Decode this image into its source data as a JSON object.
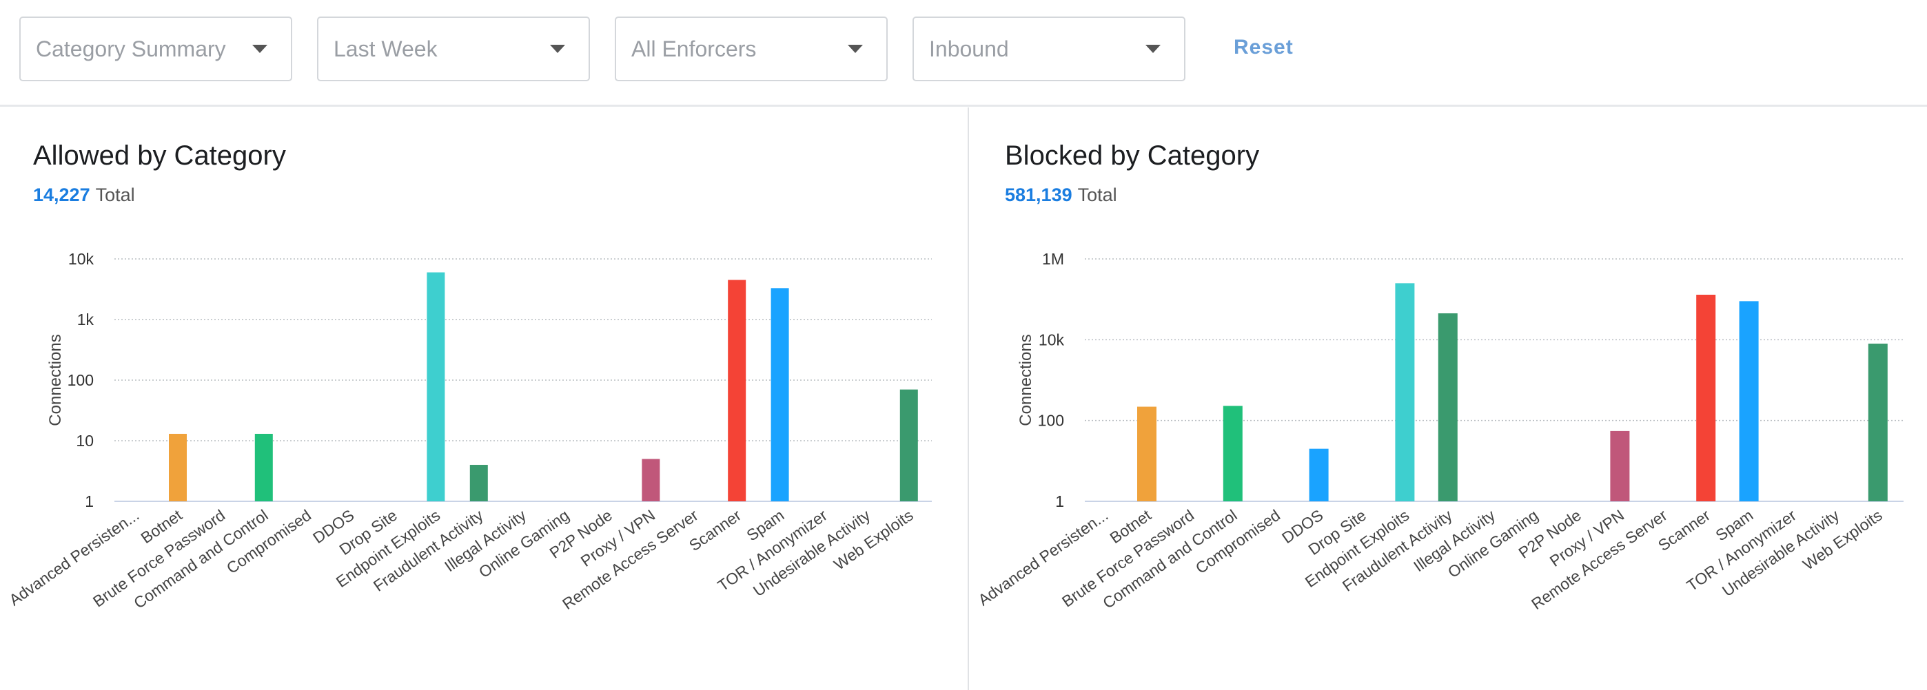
{
  "filters": {
    "view": "Category Summary",
    "period": "Last Week",
    "enforcer": "All Enforcers",
    "direction": "Inbound",
    "reset_label": "Reset"
  },
  "panels": [
    {
      "title": "Allowed by Category",
      "total": "14,227",
      "total_label": "Total"
    },
    {
      "title": "Blocked by Category",
      "total": "581,139",
      "total_label": "Total"
    }
  ],
  "chart_data": [
    {
      "type": "bar",
      "title": "Allowed by Category",
      "ylabel": "Connections",
      "yscale": "log",
      "ylim": [
        1,
        10000
      ],
      "yticks": [
        1,
        10,
        100,
        1000,
        10000
      ],
      "ytick_labels": [
        "1",
        "10",
        "100",
        "1k",
        "10k"
      ],
      "grid": true,
      "categories": [
        "Advanced Persisten...",
        "Botnet",
        "Brute Force Password",
        "Command and Control",
        "Compromised",
        "DDOS",
        "Drop Site",
        "Endpoint Exploits",
        "Fraudulent Activity",
        "Illegal Activity",
        "Online Gaming",
        "P2P Node",
        "Proxy / VPN",
        "Remote Access Server",
        "Scanner",
        "Spam",
        "TOR / Anonymizer",
        "Undesirable Activity",
        "Web Exploits"
      ],
      "values": [
        0,
        13,
        0,
        13,
        0,
        0,
        0,
        6000,
        4,
        0,
        0,
        0,
        5,
        0,
        4500,
        3300,
        0,
        0,
        70
      ],
      "colors": [
        "#f0a23b",
        "#f0a23b",
        "#20c07a",
        "#20c07a",
        "#1aa3ff",
        "#1aa3ff",
        "#3ecfcf",
        "#3ecfcf",
        "#3a9a6e",
        "#3a9a6e",
        "#c0577a",
        "#c0577a",
        "#c0577a",
        "#f44336",
        "#f44336",
        "#1aa3ff",
        "#1aa3ff",
        "#3a9a6e",
        "#3a9a6e"
      ]
    },
    {
      "type": "bar",
      "title": "Blocked by Category",
      "ylabel": "Connections",
      "yscale": "log",
      "ylim": [
        1,
        1000000
      ],
      "yticks": [
        1,
        100,
        10000,
        1000000
      ],
      "ytick_labels": [
        "1",
        "100",
        "10k",
        "1M"
      ],
      "grid": true,
      "categories": [
        "Advanced Persisten...",
        "Botnet",
        "Brute Force Password",
        "Command and Control",
        "Compromised",
        "DDOS",
        "Drop Site",
        "Endpoint Exploits",
        "Fraudulent Activity",
        "Illegal Activity",
        "Online Gaming",
        "P2P Node",
        "Proxy / VPN",
        "Remote Access Server",
        "Scanner",
        "Spam",
        "TOR / Anonymizer",
        "Undesirable Activity",
        "Web Exploits"
      ],
      "values": [
        0,
        220,
        0,
        230,
        0,
        20,
        0,
        250000,
        45000,
        0,
        0,
        0,
        55,
        0,
        130000,
        90000,
        0,
        0,
        8000
      ],
      "colors": [
        "#f0a23b",
        "#f0a23b",
        "#20c07a",
        "#20c07a",
        "#1aa3ff",
        "#1aa3ff",
        "#3ecfcf",
        "#3ecfcf",
        "#3a9a6e",
        "#3a9a6e",
        "#c0577a",
        "#c0577a",
        "#c0577a",
        "#f44336",
        "#f44336",
        "#1aa3ff",
        "#1aa3ff",
        "#3a9a6e",
        "#3a9a6e"
      ]
    }
  ]
}
